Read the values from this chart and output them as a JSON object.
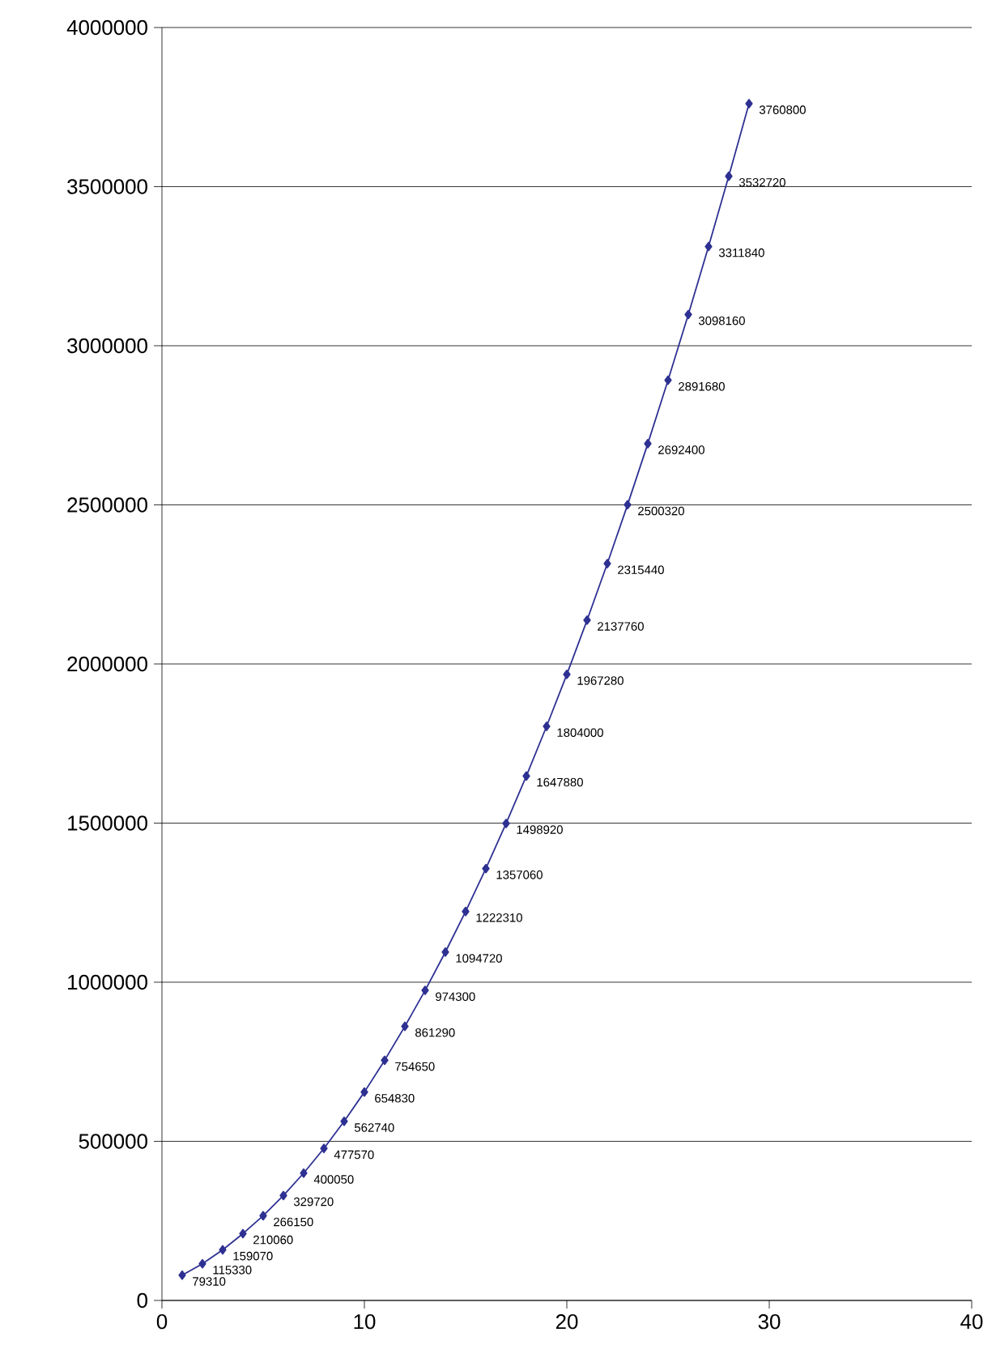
{
  "chart_data": {
    "type": "line",
    "color": "#2e3192",
    "marker": "diamond",
    "line_style": "solid",
    "grid": "y",
    "data_labels": true,
    "x": [
      1,
      2,
      3,
      4,
      5,
      6,
      7,
      8,
      9,
      10,
      11,
      12,
      13,
      14,
      15,
      16,
      17,
      18,
      19,
      20,
      21,
      22,
      23,
      24,
      25,
      26,
      27,
      28,
      29
    ],
    "values": [
      79310,
      115330,
      159070,
      210060,
      266150,
      329720,
      400050,
      477570,
      562740,
      654830,
      754650,
      861290,
      974300,
      1094720,
      1222310,
      1357060,
      1498920,
      1647880,
      1804000,
      1967280,
      2137760,
      2315440,
      2500320,
      2692400,
      2891680,
      3098160,
      3311840,
      3532720,
      3760800
    ],
    "xlim": [
      0,
      40
    ],
    "xticks": [
      0,
      10,
      20,
      30,
      40
    ],
    "ylim": [
      0,
      4000000
    ],
    "yticks": [
      0,
      500000,
      1000000,
      1500000,
      2000000,
      2500000,
      3000000,
      3500000,
      4000000
    ]
  }
}
